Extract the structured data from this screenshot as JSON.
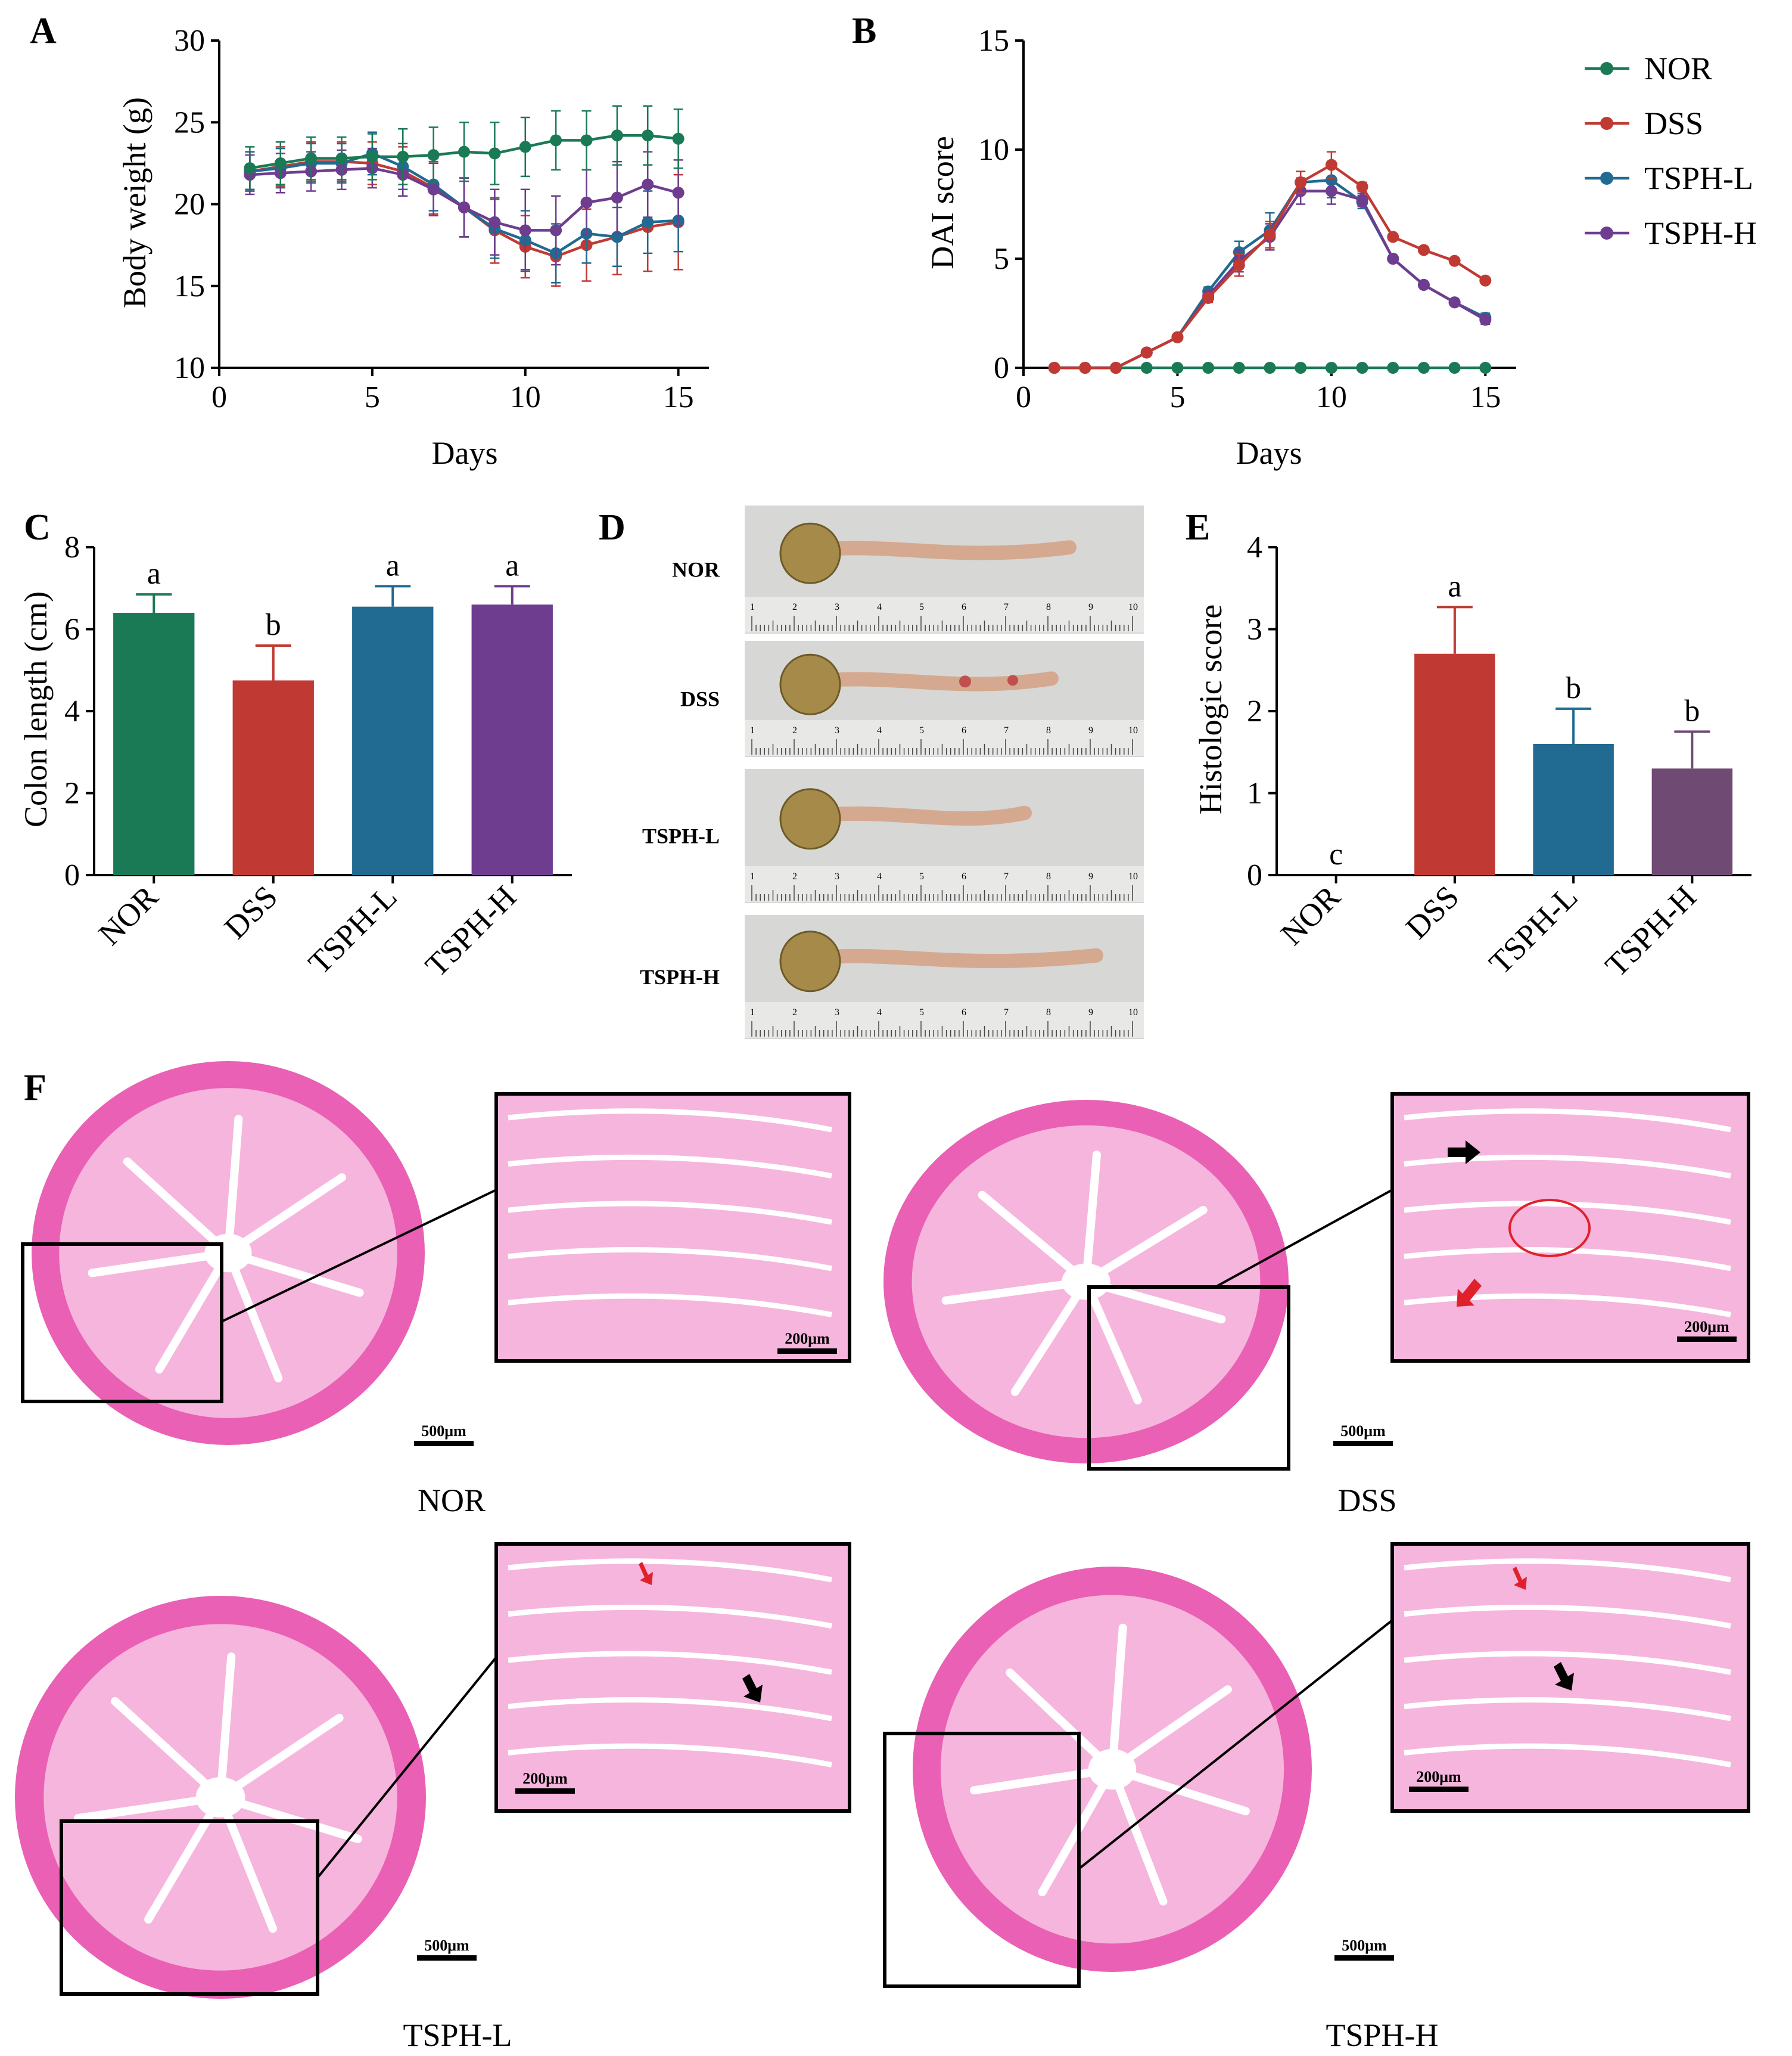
{
  "figure": {
    "colors": {
      "NOR": "#1a7a55",
      "DSS": "#c03a33",
      "TSPH-L": "#216a91",
      "TSPH-H": "#6e3d8f",
      "TSPH-H-E": "#6f4a73",
      "tissue": "#e960b4",
      "tissue_light": "#f6b5dc",
      "lumen": "#ffffff",
      "ruler": "#cfcfcf"
    },
    "panel_letters": {
      "A": "A",
      "B": "B",
      "C": "C",
      "D": "D",
      "E": "E",
      "F": "F"
    }
  },
  "chart_data": [
    {
      "id": "A",
      "type": "line",
      "title": "",
      "xlabel": "Days",
      "ylabel": "Body weight (g)",
      "xlim": [
        0,
        16
      ],
      "ylim": [
        10,
        30
      ],
      "xticks": [
        0,
        5,
        10,
        15
      ],
      "yticks": [
        10,
        15,
        20,
        25,
        30
      ],
      "x": [
        1,
        2,
        3,
        4,
        5,
        6,
        7,
        8,
        9,
        10,
        11,
        12,
        13,
        14,
        15
      ],
      "series": [
        {
          "name": "NOR",
          "values": [
            22.2,
            22.5,
            22.8,
            22.8,
            22.9,
            22.9,
            23.0,
            23.2,
            23.1,
            23.5,
            23.9,
            23.9,
            24.2,
            24.2,
            24.0
          ],
          "err": [
            1.3,
            1.3,
            1.3,
            1.3,
            1.4,
            1.7,
            1.7,
            1.8,
            1.9,
            1.8,
            1.8,
            1.8,
            1.8,
            1.8,
            1.8
          ]
        },
        {
          "name": "DSS",
          "values": [
            22.0,
            22.3,
            22.6,
            22.6,
            22.5,
            22.0,
            21.0,
            19.8,
            18.4,
            17.4,
            16.8,
            17.5,
            18.0,
            18.6,
            18.9
          ],
          "err": [
            1.2,
            1.2,
            1.2,
            1.2,
            1.3,
            1.5,
            1.6,
            1.8,
            2.0,
            1.9,
            1.8,
            2.2,
            2.3,
            2.7,
            2.9
          ]
        },
        {
          "name": "TSPH-L",
          "values": [
            22.0,
            22.2,
            22.5,
            22.5,
            23.1,
            22.3,
            21.2,
            19.8,
            18.5,
            17.8,
            17.0,
            18.2,
            18.0,
            18.9,
            19.0
          ],
          "err": [
            1.2,
            1.2,
            1.2,
            1.2,
            1.3,
            1.4,
            1.6,
            1.8,
            1.8,
            1.8,
            1.8,
            1.8,
            1.8,
            1.9,
            1.9
          ]
        },
        {
          "name": "TSPH-H",
          "values": [
            21.8,
            21.9,
            22.0,
            22.1,
            22.2,
            21.8,
            20.9,
            19.8,
            18.9,
            18.4,
            18.4,
            20.1,
            20.4,
            21.2,
            20.7
          ],
          "err": [
            1.2,
            1.2,
            1.2,
            1.2,
            1.2,
            1.3,
            1.6,
            1.8,
            2.0,
            2.5,
            2.1,
            2.0,
            2.2,
            2.0,
            2.0
          ]
        }
      ]
    },
    {
      "id": "B",
      "type": "line",
      "title": "",
      "xlabel": "Days",
      "ylabel": "DAI score",
      "xlim": [
        0,
        16
      ],
      "ylim": [
        0,
        15
      ],
      "xticks": [
        0,
        5,
        10,
        15
      ],
      "yticks": [
        0,
        5,
        10,
        15
      ],
      "x": [
        1,
        2,
        3,
        4,
        5,
        6,
        7,
        8,
        9,
        10,
        11,
        12,
        13,
        14,
        15
      ],
      "series": [
        {
          "name": "NOR",
          "values": [
            0,
            0,
            0,
            0,
            0,
            0,
            0,
            0,
            0,
            0,
            0,
            0,
            0,
            0,
            0
          ],
          "err": [
            0,
            0,
            0,
            0,
            0,
            0,
            0,
            0,
            0,
            0,
            0,
            0,
            0,
            0,
            0
          ]
        },
        {
          "name": "DSS",
          "values": [
            0,
            0,
            0,
            0.7,
            1.4,
            3.2,
            4.7,
            6.1,
            8.5,
            9.3,
            8.3,
            6.0,
            5.4,
            4.9,
            4.0
          ],
          "err": [
            0,
            0,
            0,
            0,
            0,
            0.2,
            0.5,
            0.6,
            0.5,
            0.6,
            0.2,
            0,
            0,
            0,
            0
          ]
        },
        {
          "name": "TSPH-L",
          "values": [
            0,
            0,
            0,
            0.7,
            1.4,
            3.5,
            5.3,
            6.3,
            8.5,
            8.6,
            7.6,
            5.0,
            3.8,
            3.0,
            2.3
          ],
          "err": [
            0,
            0,
            0,
            0,
            0,
            0.2,
            0.5,
            0.8,
            0.5,
            0.8,
            0.3,
            0,
            0,
            0,
            0.2
          ]
        },
        {
          "name": "TSPH-H",
          "values": [
            0,
            0,
            0,
            0.7,
            1.4,
            3.3,
            4.9,
            6.0,
            8.1,
            8.1,
            7.7,
            5.0,
            3.8,
            3.0,
            2.2
          ],
          "err": [
            0,
            0,
            0,
            0,
            0,
            0.2,
            0.5,
            0.6,
            0.6,
            0.6,
            0.3,
            0,
            0,
            0,
            0.2
          ]
        }
      ],
      "legend": [
        "NOR",
        "DSS",
        "TSPH-L",
        "TSPH-H"
      ],
      "legend_position": "top-right"
    },
    {
      "id": "C",
      "type": "bar",
      "title": "",
      "xlabel": "",
      "ylabel": "Colon length (cm)",
      "ylim": [
        0,
        8
      ],
      "yticks": [
        0,
        2,
        4,
        6,
        8
      ],
      "categories": [
        "NOR",
        "DSS",
        "TSPH-L",
        "TSPH-H"
      ],
      "values": [
        6.4,
        4.75,
        6.55,
        6.6
      ],
      "err": [
        0.45,
        0.85,
        0.5,
        0.45
      ],
      "letters": [
        "a",
        "b",
        "a",
        "a"
      ]
    },
    {
      "id": "E",
      "type": "bar",
      "title": "",
      "xlabel": "",
      "ylabel": "Histologic score",
      "ylim": [
        0,
        4
      ],
      "yticks": [
        0,
        1,
        2,
        3,
        4
      ],
      "categories": [
        "NOR",
        "DSS",
        "TSPH-L",
        "TSPH-H"
      ],
      "values": [
        0,
        2.7,
        1.6,
        1.3
      ],
      "err": [
        0,
        0.57,
        0.43,
        0.45
      ],
      "letters": [
        "c",
        "a",
        "b",
        "b"
      ]
    }
  ],
  "panel_d": {
    "rows": [
      "NOR",
      "DSS",
      "TSPH-L",
      "TSPH-H"
    ],
    "ruler_numbers": [
      "1",
      "2",
      "3",
      "4",
      "5",
      "6",
      "7",
      "8",
      "9",
      "10"
    ]
  },
  "panel_f": {
    "groups": [
      "NOR",
      "DSS",
      "TSPH-L",
      "TSPH-H"
    ],
    "scale_full": "500μm",
    "scale_zoom": "200μm"
  }
}
